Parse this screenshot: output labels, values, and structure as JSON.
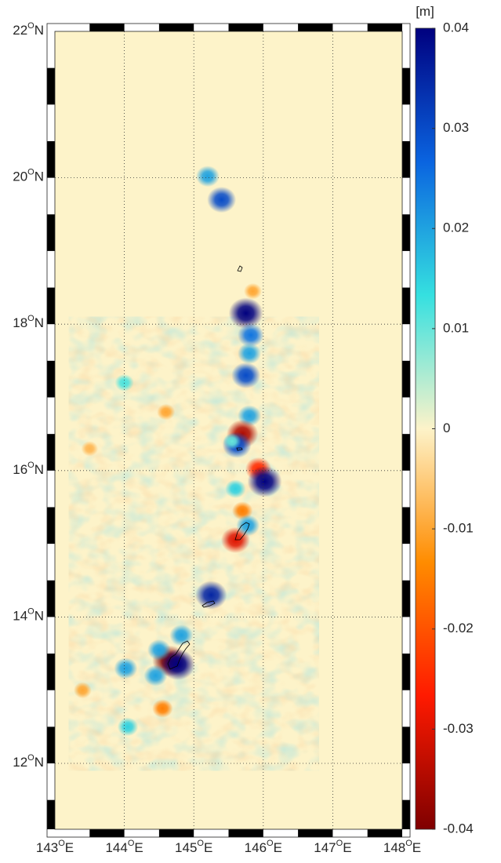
{
  "map": {
    "lon_range": [
      143,
      148
    ],
    "lat_range": [
      11.1,
      22
    ],
    "frame_step": 0.5,
    "background": "#fdf3c9",
    "lon_ticks": [
      {
        "value": 143,
        "label": "143",
        "degree": "O",
        "hemisphere": "E"
      },
      {
        "value": 144,
        "label": "144",
        "degree": "O",
        "hemisphere": "E"
      },
      {
        "value": 145,
        "label": "145",
        "degree": "O",
        "hemisphere": "E"
      },
      {
        "value": 146,
        "label": "146",
        "degree": "O",
        "hemisphere": "E"
      },
      {
        "value": 147,
        "label": "147",
        "degree": "O",
        "hemisphere": "E"
      },
      {
        "value": 148,
        "label": "148",
        "degree": "O",
        "hemisphere": "E"
      }
    ],
    "lat_ticks": [
      {
        "value": 12,
        "label": "12",
        "degree": "O",
        "hemisphere": "N"
      },
      {
        "value": 14,
        "label": "14",
        "degree": "O",
        "hemisphere": "N"
      },
      {
        "value": 16,
        "label": "16",
        "degree": "O",
        "hemisphere": "N"
      },
      {
        "value": 18,
        "label": "18",
        "degree": "O",
        "hemisphere": "N"
      },
      {
        "value": 20,
        "label": "20",
        "degree": "O",
        "hemisphere": "N"
      },
      {
        "value": 22,
        "label": "22",
        "degree": "O",
        "hemisphere": "N"
      }
    ],
    "features": [
      {
        "lon": 145.4,
        "lat": 19.7,
        "value": 0.03
      },
      {
        "lon": 145.2,
        "lat": 20.02,
        "value": 0.02
      },
      {
        "lon": 145.75,
        "lat": 18.15,
        "value": 0.04
      },
      {
        "lon": 145.82,
        "lat": 17.85,
        "value": 0.025
      },
      {
        "lon": 145.8,
        "lat": 17.6,
        "value": 0.02
      },
      {
        "lon": 145.75,
        "lat": 17.3,
        "value": 0.03
      },
      {
        "lon": 145.8,
        "lat": 16.75,
        "value": 0.02
      },
      {
        "lon": 145.7,
        "lat": 16.5,
        "value": -0.035
      },
      {
        "lon": 145.62,
        "lat": 16.35,
        "value": 0.03
      },
      {
        "lon": 145.93,
        "lat": 16.02,
        "value": -0.025
      },
      {
        "lon": 146.02,
        "lat": 15.85,
        "value": 0.04
      },
      {
        "lon": 145.6,
        "lat": 15.75,
        "value": 0.015
      },
      {
        "lon": 145.7,
        "lat": 15.45,
        "value": -0.015
      },
      {
        "lon": 145.6,
        "lat": 15.05,
        "value": -0.03
      },
      {
        "lon": 145.78,
        "lat": 15.25,
        "value": 0.02
      },
      {
        "lon": 145.25,
        "lat": 14.3,
        "value": 0.035
      },
      {
        "lon": 144.65,
        "lat": 13.4,
        "value": -0.04
      },
      {
        "lon": 144.77,
        "lat": 13.35,
        "value": 0.04
      },
      {
        "lon": 144.5,
        "lat": 13.55,
        "value": 0.02
      },
      {
        "lon": 144.45,
        "lat": 13.2,
        "value": 0.02
      },
      {
        "lon": 144.82,
        "lat": 13.75,
        "value": 0.02
      },
      {
        "lon": 144.02,
        "lat": 13.3,
        "value": 0.02
      },
      {
        "lon": 144.05,
        "lat": 12.5,
        "value": 0.015
      },
      {
        "lon": 145.85,
        "lat": 18.45,
        "value": -0.01
      },
      {
        "lon": 144.6,
        "lat": 16.8,
        "value": -0.01
      },
      {
        "lon": 143.5,
        "lat": 16.3,
        "value": -0.008
      },
      {
        "lon": 144.0,
        "lat": 17.2,
        "value": 0.012
      },
      {
        "lon": 145.55,
        "lat": 16.4,
        "value": 0.01
      },
      {
        "lon": 143.4,
        "lat": 13.0,
        "value": -0.01
      },
      {
        "lon": 144.55,
        "lat": 12.75,
        "value": -0.015
      }
    ]
  },
  "colorbar": {
    "unit": "[m]",
    "clim": [
      -0.04,
      0.04
    ],
    "colormap": [
      "#7f0000",
      "#ff1a00",
      "#ff8c00",
      "#fdf3c9",
      "#35e0e0",
      "#0a64e0",
      "#00007f"
    ],
    "ticks": [
      -0.04,
      -0.03,
      -0.02,
      -0.01,
      0,
      0.01,
      0.02,
      0.03,
      0.04
    ]
  }
}
